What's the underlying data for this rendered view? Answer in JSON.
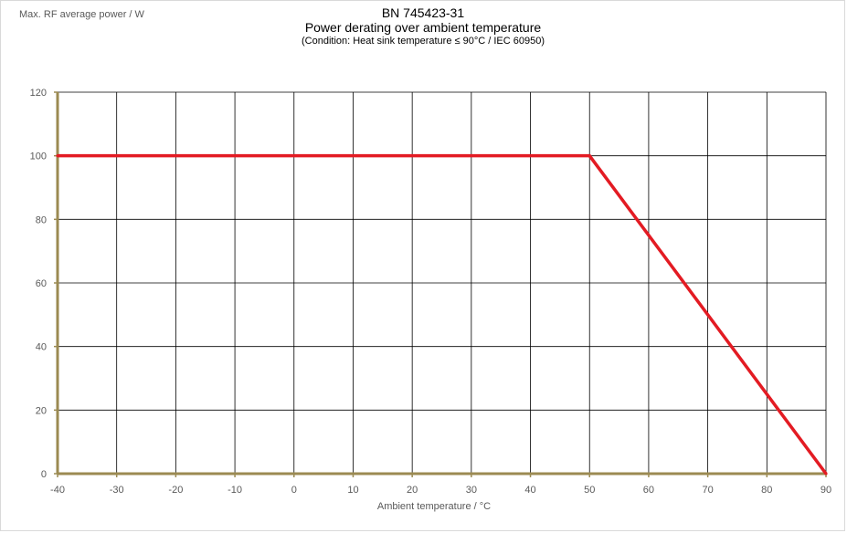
{
  "chart_data": {
    "type": "line",
    "title": "BN 745423-31",
    "subtitle": "Power derating over ambient temperature",
    "condition": "(Condition: Heat sink temperature ≤ 90°C / IEC 60950)",
    "xlabel": "Ambient temperature / °C",
    "ylabel": "Max. RF average power / W",
    "xlim": [
      -40,
      90
    ],
    "ylim": [
      0,
      120
    ],
    "x_ticks": [
      -40,
      -30,
      -20,
      -10,
      0,
      10,
      20,
      30,
      40,
      50,
      60,
      70,
      80,
      90
    ],
    "y_ticks": [
      0,
      20,
      40,
      60,
      80,
      100,
      120
    ],
    "grid": true,
    "series": [
      {
        "x": [
          -40,
          50,
          90
        ],
        "y": [
          100,
          100,
          0
        ],
        "color": "#e31b23"
      }
    ],
    "colors": {
      "axis": "#9b8a52",
      "grid": "#000000",
      "tick_text": "#595959"
    }
  }
}
